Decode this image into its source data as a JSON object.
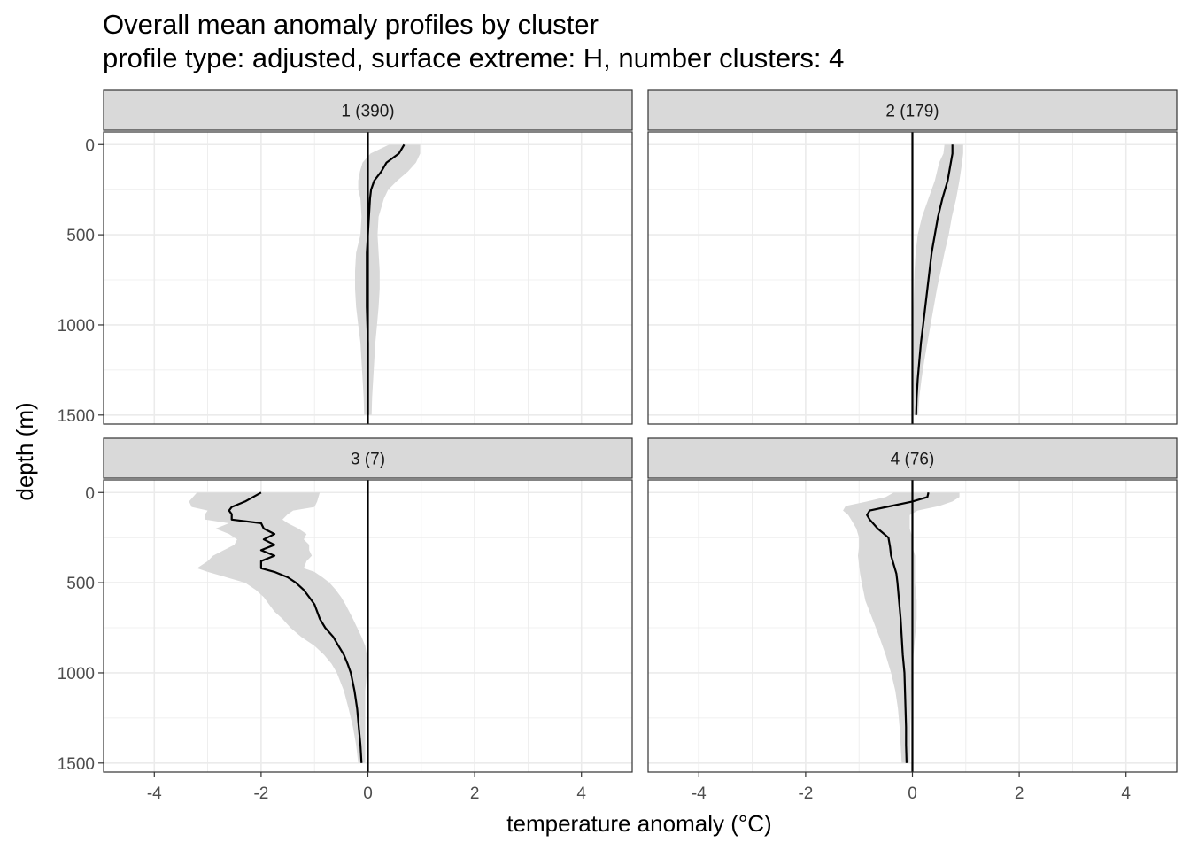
{
  "chart_data": {
    "type": "line",
    "title": "Overall mean anomaly profiles by cluster",
    "subtitle": "profile type: adjusted, surface extreme: H, number clusters: 4",
    "xlabel": "temperature anomaly (°C)",
    "ylabel": "depth (m)",
    "xlim": [
      -4.95,
      4.95
    ],
    "ylim": [
      1550,
      -70
    ],
    "xticks": [
      -4,
      -2,
      0,
      2,
      4
    ],
    "xtick_labels": [
      "-4",
      "-2",
      "0",
      "2",
      "4"
    ],
    "yticks": [
      0,
      500,
      1000,
      1500
    ],
    "ytick_labels": [
      "0",
      "500",
      "1000",
      "1500"
    ],
    "reference_line_x": 0,
    "colors": {
      "line": "#000000",
      "ribbon": "#d9d9d9",
      "strip": "#d9d9d9",
      "grid": "#ebebeb",
      "border": "#333333"
    },
    "panels": [
      {
        "label": "1 (390)",
        "depth": [
          0,
          50,
          100,
          150,
          200,
          250,
          300,
          400,
          500,
          600,
          700,
          800,
          900,
          1000,
          1100,
          1200,
          1300,
          1400,
          1500
        ],
        "mean": [
          0.68,
          0.58,
          0.35,
          0.25,
          0.12,
          0.06,
          0.04,
          0.02,
          0.0,
          -0.02,
          -0.02,
          -0.02,
          -0.02,
          -0.01,
          0.0,
          0.0,
          0.0,
          0.0,
          0.0
        ],
        "lower": [
          0.4,
          0.05,
          -0.1,
          -0.15,
          -0.18,
          -0.18,
          -0.14,
          -0.12,
          -0.14,
          -0.22,
          -0.24,
          -0.24,
          -0.22,
          -0.18,
          -0.14,
          -0.12,
          -0.1,
          -0.08,
          -0.07
        ],
        "upper": [
          0.98,
          0.98,
          0.9,
          0.75,
          0.55,
          0.38,
          0.3,
          0.2,
          0.18,
          0.2,
          0.22,
          0.22,
          0.2,
          0.17,
          0.14,
          0.12,
          0.1,
          0.08,
          0.07
        ]
      },
      {
        "label": "2 (179)",
        "depth": [
          0,
          50,
          100,
          200,
          300,
          400,
          500,
          600,
          700,
          800,
          900,
          1000,
          1100,
          1200,
          1300,
          1400,
          1500
        ],
        "mean": [
          0.75,
          0.75,
          0.72,
          0.66,
          0.56,
          0.48,
          0.42,
          0.36,
          0.32,
          0.28,
          0.24,
          0.2,
          0.16,
          0.13,
          0.1,
          0.08,
          0.07
        ],
        "lower": [
          0.6,
          0.58,
          0.5,
          0.42,
          0.3,
          0.18,
          0.1,
          0.06,
          0.04,
          0.03,
          0.02,
          0.02,
          0.02,
          0.02,
          0.02,
          0.02,
          0.02
        ],
        "upper": [
          0.95,
          0.95,
          0.93,
          0.88,
          0.82,
          0.74,
          0.68,
          0.6,
          0.53,
          0.46,
          0.4,
          0.34,
          0.28,
          0.22,
          0.17,
          0.13,
          0.11
        ]
      },
      {
        "label": "3 (7)",
        "depth": [
          0,
          50,
          80,
          100,
          120,
          150,
          170,
          200,
          230,
          260,
          290,
          320,
          350,
          380,
          420,
          440,
          470,
          500,
          540,
          580,
          620,
          660,
          700,
          750,
          800,
          850,
          900,
          950,
          1000,
          1100,
          1200,
          1300,
          1400,
          1500
        ],
        "mean": [
          -2.0,
          -2.3,
          -2.55,
          -2.6,
          -2.55,
          -2.55,
          -2.0,
          -1.95,
          -1.75,
          -1.95,
          -1.75,
          -2.0,
          -1.75,
          -2.0,
          -2.0,
          -1.75,
          -1.5,
          -1.35,
          -1.2,
          -1.1,
          -1.0,
          -0.95,
          -0.9,
          -0.8,
          -0.65,
          -0.55,
          -0.45,
          -0.38,
          -0.32,
          -0.25,
          -0.2,
          -0.17,
          -0.14,
          -0.12
        ],
        "lower": [
          -3.2,
          -3.35,
          -3.3,
          -3.0,
          -3.05,
          -3.05,
          -2.6,
          -2.85,
          -2.6,
          -2.45,
          -2.5,
          -2.7,
          -2.9,
          -3.0,
          -3.2,
          -3.0,
          -2.65,
          -2.3,
          -2.1,
          -1.95,
          -1.85,
          -1.75,
          -1.6,
          -1.45,
          -1.25,
          -1.0,
          -0.82,
          -0.68,
          -0.58,
          -0.45,
          -0.36,
          -0.28,
          -0.22,
          -0.18
        ],
        "upper": [
          -0.9,
          -0.95,
          -1.0,
          -1.4,
          -1.5,
          -1.6,
          -1.5,
          -1.3,
          -1.15,
          -1.2,
          -1.1,
          -1.1,
          -1.05,
          -1.15,
          -1.2,
          -1.0,
          -0.85,
          -0.72,
          -0.6,
          -0.5,
          -0.42,
          -0.35,
          -0.28,
          -0.2,
          -0.12,
          -0.05,
          -0.02,
          0.0,
          -0.02,
          -0.05,
          -0.05,
          -0.05,
          -0.05,
          -0.05
        ]
      },
      {
        "label": "4 (76)",
        "depth": [
          0,
          25,
          50,
          75,
          100,
          125,
          150,
          200,
          250,
          300,
          350,
          400,
          450,
          500,
          600,
          700,
          800,
          900,
          1000,
          1100,
          1200,
          1300,
          1400,
          1500
        ],
        "mean": [
          0.3,
          0.28,
          0.0,
          -0.4,
          -0.8,
          -0.85,
          -0.8,
          -0.65,
          -0.45,
          -0.42,
          -0.4,
          -0.35,
          -0.3,
          -0.28,
          -0.25,
          -0.22,
          -0.2,
          -0.18,
          -0.15,
          -0.14,
          -0.13,
          -0.12,
          -0.12,
          -0.11
        ],
        "lower": [
          -0.35,
          -0.5,
          -0.85,
          -1.25,
          -1.3,
          -1.2,
          -1.15,
          -1.05,
          -1.0,
          -1.0,
          -1.02,
          -1.0,
          -0.98,
          -0.95,
          -0.88,
          -0.75,
          -0.62,
          -0.5,
          -0.4,
          -0.32,
          -0.27,
          -0.24,
          -0.22,
          -0.2
        ],
        "upper": [
          0.88,
          0.88,
          0.75,
          0.5,
          0.1,
          -0.05,
          -0.05,
          -0.05,
          0.0,
          0.0,
          0.05,
          0.05,
          0.05,
          0.05,
          0.08,
          0.08,
          0.05,
          0.02,
          0.0,
          -0.02,
          -0.03,
          -0.04,
          -0.04,
          -0.05
        ]
      }
    ]
  }
}
